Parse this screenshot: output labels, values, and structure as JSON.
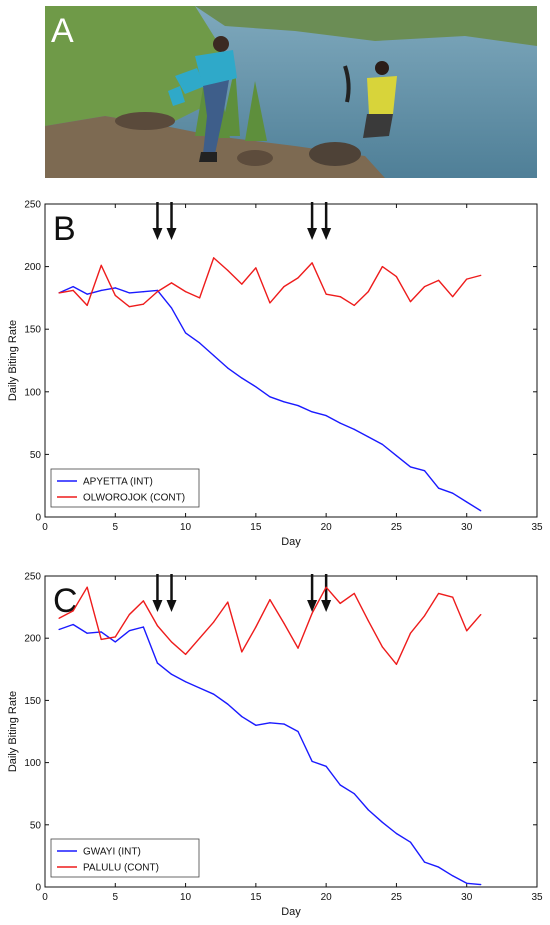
{
  "panel_a": {
    "letter": "A",
    "colors": {
      "water": "#5f8fa6",
      "grass": "#6f9a48",
      "shirt_left": "#2fa9c9",
      "shirt_right": "#d8d43a"
    }
  },
  "chart_data": [
    {
      "panel": "B",
      "type": "line",
      "xlabel": "Day",
      "ylabel": "Daily Biting Rate",
      "xlim": [
        0,
        35
      ],
      "ylim": [
        0,
        250
      ],
      "xticks": [
        "0",
        "5",
        "10",
        "15",
        "20",
        "25",
        "30",
        "35"
      ],
      "yticks": [
        "0",
        "50",
        "100",
        "150",
        "200",
        "250"
      ],
      "arrows_at_day": [
        8,
        9,
        19,
        20
      ],
      "grid": false,
      "legend_position": "bottom-left",
      "series": [
        {
          "name": "APYETTA (INT)",
          "color": "#1a1aff",
          "x": [
            1,
            2,
            3,
            4,
            5,
            6,
            7,
            8,
            9,
            10,
            11,
            12,
            13,
            14,
            15,
            16,
            17,
            18,
            19,
            20,
            21,
            22,
            23,
            24,
            25,
            26,
            27,
            28,
            29,
            30,
            31
          ],
          "values": [
            179,
            184,
            178,
            181,
            183,
            179,
            180,
            181,
            167,
            147,
            139,
            129,
            119,
            111,
            104,
            96,
            92,
            89,
            84,
            81,
            75,
            70,
            64,
            58,
            49,
            40,
            37,
            23,
            19,
            12,
            5
          ]
        },
        {
          "name": "OLWOROJOK (CONT)",
          "color": "#ee1c1c",
          "x": [
            1,
            2,
            3,
            4,
            5,
            6,
            7,
            8,
            9,
            10,
            11,
            12,
            13,
            14,
            15,
            16,
            17,
            18,
            19,
            20,
            21,
            22,
            23,
            24,
            25,
            26,
            27,
            28,
            29,
            30,
            31
          ],
          "values": [
            179,
            181,
            169,
            201,
            177,
            168,
            170,
            180,
            187,
            180,
            175,
            207,
            197,
            186,
            199,
            171,
            184,
            191,
            203,
            178,
            176,
            169,
            180,
            200,
            192,
            172,
            184,
            189,
            176,
            190,
            193
          ]
        }
      ]
    },
    {
      "panel": "C",
      "type": "line",
      "xlabel": "Day",
      "ylabel": "Daily Biting Rate",
      "xlim": [
        0,
        35
      ],
      "ylim": [
        0,
        250
      ],
      "xticks": [
        "0",
        "5",
        "10",
        "15",
        "20",
        "25",
        "30",
        "35"
      ],
      "yticks": [
        "0",
        "50",
        "100",
        "150",
        "200",
        "250"
      ],
      "arrows_at_day": [
        8,
        9,
        19,
        20
      ],
      "grid": false,
      "legend_position": "bottom-left",
      "series": [
        {
          "name": "GWAYI (INT)",
          "color": "#1a1aff",
          "x": [
            1,
            2,
            3,
            4,
            5,
            6,
            7,
            8,
            9,
            10,
            11,
            12,
            13,
            14,
            15,
            16,
            17,
            18,
            19,
            20,
            21,
            22,
            23,
            24,
            25,
            26,
            27,
            28,
            29,
            30,
            31
          ],
          "values": [
            207,
            211,
            204,
            205,
            197,
            206,
            209,
            180,
            171,
            165,
            160,
            155,
            147,
            137,
            130,
            132,
            131,
            125,
            101,
            97,
            82,
            75,
            62,
            52,
            43,
            36,
            20,
            16,
            9,
            3,
            2
          ]
        },
        {
          "name": "PALULU (CONT)",
          "color": "#ee1c1c",
          "x": [
            1,
            2,
            3,
            4,
            5,
            6,
            7,
            8,
            9,
            10,
            11,
            12,
            13,
            14,
            15,
            16,
            17,
            18,
            19,
            20,
            21,
            22,
            23,
            24,
            25,
            26,
            27,
            28,
            29,
            30,
            31
          ],
          "values": [
            216,
            222,
            241,
            199,
            201,
            219,
            230,
            210,
            197,
            187,
            200,
            213,
            229,
            189,
            209,
            231,
            212,
            192,
            220,
            241,
            228,
            236,
            214,
            193,
            179,
            204,
            218,
            236,
            233,
            206,
            219
          ]
        }
      ]
    }
  ]
}
